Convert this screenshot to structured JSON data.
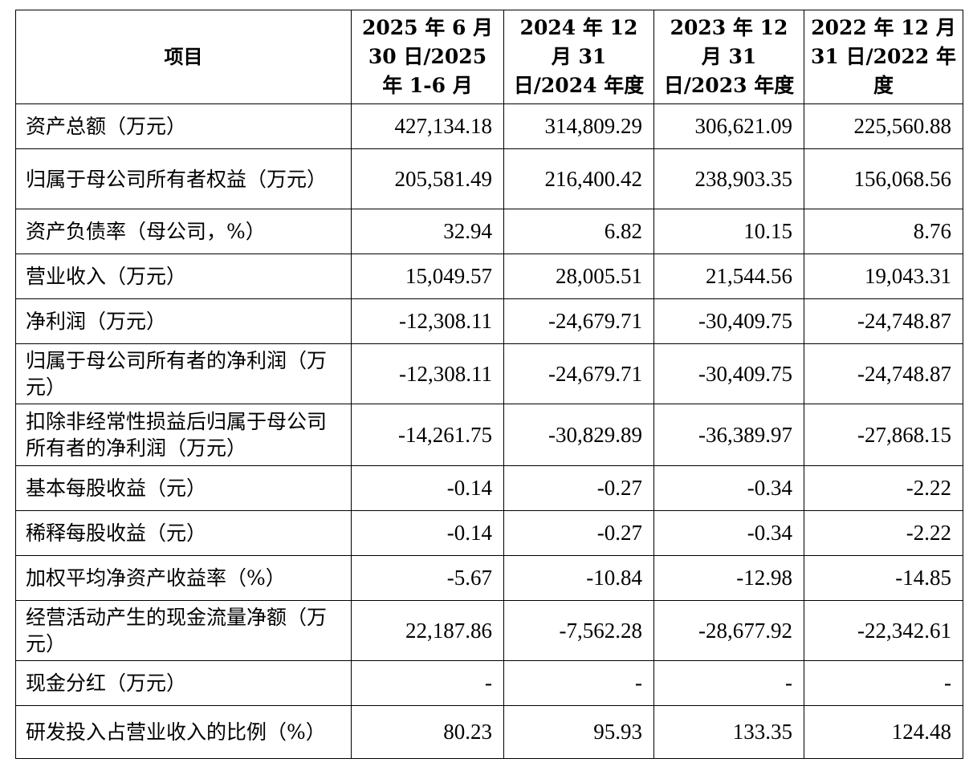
{
  "table": {
    "header": {
      "item": "项目",
      "periods": [
        "2025 年 6 月 30 日/2025 年 1-6 月",
        "2024 年 12 月 31 日/2024 年度",
        "2023 年 12 月 31 日/2023 年度",
        "2022 年 12 月 31 日/2022 年度"
      ]
    },
    "rows": [
      {
        "label": "资产总额（万元）",
        "values": [
          "427,134.18",
          "314,809.29",
          "306,621.09",
          "225,560.88"
        ]
      },
      {
        "label": "归属于母公司所有者权益（万元）",
        "values": [
          "205,581.49",
          "216,400.42",
          "238,903.35",
          "156,068.56"
        ]
      },
      {
        "label": "资产负债率（母公司，%）",
        "values": [
          "32.94",
          "6.82",
          "10.15",
          "8.76"
        ]
      },
      {
        "label": "营业收入（万元）",
        "values": [
          "15,049.57",
          "28,005.51",
          "21,544.56",
          "19,043.31"
        ]
      },
      {
        "label": "净利润（万元）",
        "values": [
          "-12,308.11",
          "-24,679.71",
          "-30,409.75",
          "-24,748.87"
        ]
      },
      {
        "label": "归属于母公司所有者的净利润（万元）",
        "values": [
          "-12,308.11",
          "-24,679.71",
          "-30,409.75",
          "-24,748.87"
        ]
      },
      {
        "label": "扣除非经常性损益后归属于母公司所有者的净利润（万元）",
        "values": [
          "-14,261.75",
          "-30,829.89",
          "-36,389.97",
          "-27,868.15"
        ]
      },
      {
        "label": "基本每股收益（元）",
        "values": [
          "-0.14",
          "-0.27",
          "-0.34",
          "-2.22"
        ]
      },
      {
        "label": "稀释每股收益（元）",
        "values": [
          "-0.14",
          "-0.27",
          "-0.34",
          "-2.22"
        ]
      },
      {
        "label": "加权平均净资产收益率（%）",
        "values": [
          "-5.67",
          "-10.84",
          "-12.98",
          "-14.85"
        ]
      },
      {
        "label": "经营活动产生的现金流量净额（万元）",
        "values": [
          "22,187.86",
          "-7,562.28",
          "-28,677.92",
          "-22,342.61"
        ]
      },
      {
        "label": "现金分红（万元）",
        "values": [
          "-",
          "-",
          "-",
          "-"
        ]
      },
      {
        "label": "研发投入占营业收入的比例（%）",
        "values": [
          "80.23",
          "95.93",
          "133.35",
          "124.48"
        ]
      }
    ]
  }
}
